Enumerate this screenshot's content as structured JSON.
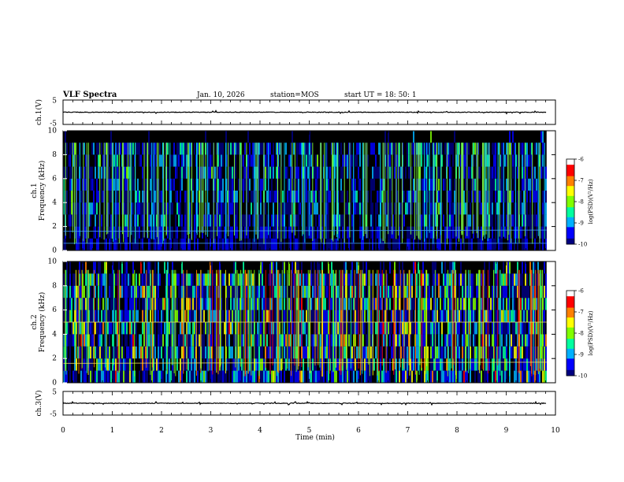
{
  "chart_data": {
    "type": "heatmap",
    "title": "VLF Spectra",
    "date": "Jan. 10, 2026",
    "station": "station=MOS",
    "start_ut": "start  UT =  18: 50: 1",
    "xlabel": "Time  (min)",
    "xlim": [
      0,
      10
    ],
    "xticks": [
      "0",
      "1",
      "2",
      "3",
      "4",
      "5",
      "6",
      "7",
      "8",
      "9",
      "10"
    ],
    "data_end_min": 9.82,
    "panels": [
      {
        "id": "ch1-voltage",
        "type": "line",
        "ylabel": "ch.1(V)",
        "ylim": [
          -5,
          5
        ],
        "yticks": [
          "5",
          "-5"
        ],
        "level": 0
      },
      {
        "id": "ch1-spectrogram",
        "type": "heatmap",
        "ylabel": "ch.1\nFrequency (kHz)",
        "ylabel_line1": "ch.1",
        "ylabel_line2": "Frequency (kHz)",
        "ylim": [
          0,
          10
        ],
        "yticks": [
          "0",
          "2",
          "4",
          "6",
          "8",
          "10"
        ],
        "colorbar": {
          "label": "log(PSD)(V²/Hz)",
          "range": [
            -10,
            -6
          ],
          "ticks": [
            "-6",
            "-7",
            "-8",
            "-9",
            "-10"
          ]
        },
        "bands_khz": [
          [
            0.6,
            0.6
          ],
          [
            1.6,
            1.7
          ]
        ],
        "intensity_note": "sferic spikes across 0-9 kHz, quiet gaps 8-10 kHz"
      },
      {
        "id": "ch2-spectrogram",
        "type": "heatmap",
        "ylabel": "ch.2\nFrequency (kHz)",
        "ylabel_line1": "ch.2",
        "ylabel_line2": "Frequency (kHz)",
        "ylim": [
          0,
          10
        ],
        "yticks": [
          "0",
          "2",
          "4",
          "6",
          "8",
          "10"
        ],
        "colorbar": {
          "label": "log(PSD)(V²/Hz)",
          "range": [
            -10,
            -6
          ],
          "ticks": [
            "-6",
            "-7",
            "-8",
            "-9",
            "-10"
          ]
        },
        "bands_khz": [
          [
            5.0,
            5.0
          ],
          [
            1.6,
            1.7
          ]
        ],
        "intensity_note": "broadband sferics 0-9 kHz, stronger than ch.1"
      },
      {
        "id": "ch3-voltage",
        "type": "line",
        "ylabel": "ch.3(V)",
        "ylim": [
          -5,
          5
        ],
        "yticks": [
          "5",
          "-5"
        ],
        "level": 0
      }
    ],
    "colormap": [
      "#000080",
      "#0000ff",
      "#00b0ff",
      "#00ffa0",
      "#80ff00",
      "#ffff00",
      "#ff8000",
      "#ff0000",
      "#ffffff"
    ]
  }
}
